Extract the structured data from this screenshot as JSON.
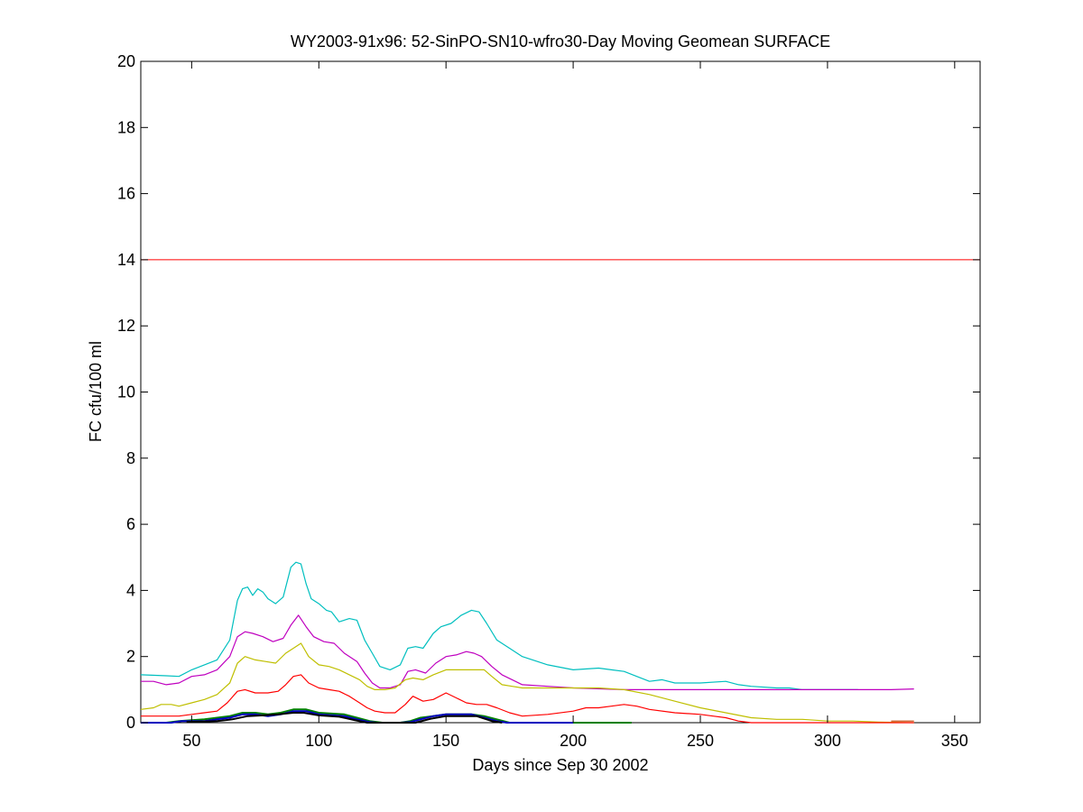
{
  "chart_data": {
    "type": "line",
    "title": "WY2003-91x96: 52-SinPO-SN10-wfro30-Day Moving Geomean SURFACE",
    "xlabel": "Days since Sep 30 2002",
    "ylabel": "FC cfu/100 ml",
    "xlim": [
      30,
      360
    ],
    "ylim": [
      0,
      20
    ],
    "xticks": [
      50,
      100,
      150,
      200,
      250,
      300,
      350
    ],
    "yticks": [
      0,
      2,
      4,
      6,
      8,
      10,
      12,
      14,
      16,
      18,
      20
    ],
    "grid": false,
    "legend": "none",
    "reference_line": {
      "y": 14,
      "color": "#ff0000"
    },
    "series": [
      {
        "color": "#00bfbf",
        "points": [
          [
            30,
            1.45
          ],
          [
            40,
            1.42
          ],
          [
            45,
            1.4
          ],
          [
            50,
            1.6
          ],
          [
            55,
            1.75
          ],
          [
            60,
            1.9
          ],
          [
            65,
            2.5
          ],
          [
            68,
            3.7
          ],
          [
            70,
            4.05
          ],
          [
            72,
            4.1
          ],
          [
            74,
            3.85
          ],
          [
            76,
            4.05
          ],
          [
            78,
            3.95
          ],
          [
            80,
            3.75
          ],
          [
            83,
            3.6
          ],
          [
            86,
            3.8
          ],
          [
            89,
            4.7
          ],
          [
            91,
            4.85
          ],
          [
            93,
            4.8
          ],
          [
            95,
            4.2
          ],
          [
            97,
            3.75
          ],
          [
            100,
            3.6
          ],
          [
            103,
            3.4
          ],
          [
            105,
            3.35
          ],
          [
            108,
            3.05
          ],
          [
            112,
            3.15
          ],
          [
            115,
            3.1
          ],
          [
            118,
            2.5
          ],
          [
            121,
            2.1
          ],
          [
            124,
            1.7
          ],
          [
            128,
            1.6
          ],
          [
            132,
            1.75
          ],
          [
            135,
            2.25
          ],
          [
            138,
            2.3
          ],
          [
            141,
            2.25
          ],
          [
            145,
            2.7
          ],
          [
            148,
            2.9
          ],
          [
            152,
            3.0
          ],
          [
            156,
            3.25
          ],
          [
            160,
            3.4
          ],
          [
            163,
            3.35
          ],
          [
            166,
            3.0
          ],
          [
            170,
            2.5
          ],
          [
            175,
            2.25
          ],
          [
            180,
            2.0
          ],
          [
            190,
            1.75
          ],
          [
            200,
            1.6
          ],
          [
            210,
            1.65
          ],
          [
            215,
            1.6
          ],
          [
            220,
            1.55
          ],
          [
            225,
            1.4
          ],
          [
            230,
            1.25
          ],
          [
            235,
            1.3
          ],
          [
            240,
            1.2
          ],
          [
            250,
            1.2
          ],
          [
            260,
            1.25
          ],
          [
            265,
            1.15
          ],
          [
            270,
            1.1
          ],
          [
            280,
            1.05
          ],
          [
            285,
            1.05
          ],
          [
            290,
            1.0
          ],
          [
            300,
            1.0
          ],
          [
            312,
            1.0
          ]
        ]
      },
      {
        "color": "#bf00bf",
        "points": [
          [
            30,
            1.25
          ],
          [
            35,
            1.25
          ],
          [
            40,
            1.15
          ],
          [
            45,
            1.2
          ],
          [
            50,
            1.4
          ],
          [
            55,
            1.45
          ],
          [
            60,
            1.6
          ],
          [
            65,
            2.0
          ],
          [
            68,
            2.6
          ],
          [
            71,
            2.75
          ],
          [
            74,
            2.7
          ],
          [
            78,
            2.6
          ],
          [
            82,
            2.45
          ],
          [
            86,
            2.55
          ],
          [
            89,
            2.95
          ],
          [
            92,
            3.25
          ],
          [
            95,
            2.9
          ],
          [
            98,
            2.6
          ],
          [
            102,
            2.45
          ],
          [
            106,
            2.4
          ],
          [
            110,
            2.1
          ],
          [
            115,
            1.85
          ],
          [
            118,
            1.5
          ],
          [
            121,
            1.2
          ],
          [
            124,
            1.05
          ],
          [
            128,
            1.05
          ],
          [
            132,
            1.15
          ],
          [
            135,
            1.55
          ],
          [
            138,
            1.6
          ],
          [
            142,
            1.5
          ],
          [
            146,
            1.8
          ],
          [
            150,
            2.0
          ],
          [
            154,
            2.05
          ],
          [
            158,
            2.15
          ],
          [
            161,
            2.1
          ],
          [
            164,
            2.0
          ],
          [
            168,
            1.7
          ],
          [
            172,
            1.45
          ],
          [
            176,
            1.3
          ],
          [
            180,
            1.15
          ],
          [
            190,
            1.1
          ],
          [
            200,
            1.05
          ],
          [
            220,
            1.0
          ],
          [
            260,
            1.0
          ],
          [
            300,
            1.0
          ],
          [
            325,
            1.0
          ],
          [
            334,
            1.02
          ]
        ]
      },
      {
        "color": "#bfbf00",
        "points": [
          [
            30,
            0.4
          ],
          [
            35,
            0.45
          ],
          [
            38,
            0.55
          ],
          [
            42,
            0.55
          ],
          [
            45,
            0.5
          ],
          [
            50,
            0.6
          ],
          [
            55,
            0.7
          ],
          [
            60,
            0.85
          ],
          [
            65,
            1.2
          ],
          [
            68,
            1.8
          ],
          [
            71,
            2.0
          ],
          [
            75,
            1.9
          ],
          [
            79,
            1.85
          ],
          [
            83,
            1.8
          ],
          [
            87,
            2.1
          ],
          [
            90,
            2.25
          ],
          [
            93,
            2.4
          ],
          [
            96,
            2.0
          ],
          [
            100,
            1.75
          ],
          [
            104,
            1.7
          ],
          [
            108,
            1.6
          ],
          [
            112,
            1.45
          ],
          [
            116,
            1.3
          ],
          [
            119,
            1.1
          ],
          [
            122,
            1.0
          ],
          [
            126,
            1.0
          ],
          [
            130,
            1.05
          ],
          [
            134,
            1.3
          ],
          [
            137,
            1.35
          ],
          [
            141,
            1.3
          ],
          [
            145,
            1.45
          ],
          [
            150,
            1.6
          ],
          [
            155,
            1.6
          ],
          [
            160,
            1.6
          ],
          [
            165,
            1.6
          ],
          [
            168,
            1.4
          ],
          [
            172,
            1.15
          ],
          [
            176,
            1.1
          ],
          [
            180,
            1.05
          ],
          [
            190,
            1.05
          ],
          [
            210,
            1.05
          ],
          [
            220,
            1.0
          ],
          [
            230,
            0.85
          ],
          [
            240,
            0.65
          ],
          [
            250,
            0.45
          ],
          [
            260,
            0.3
          ],
          [
            270,
            0.15
          ],
          [
            280,
            0.1
          ],
          [
            290,
            0.1
          ],
          [
            300,
            0.05
          ],
          [
            310,
            0.05
          ],
          [
            320,
            0.02
          ],
          [
            334,
            0.0
          ]
        ]
      },
      {
        "color": "#ff0000",
        "points": [
          [
            30,
            0.2
          ],
          [
            40,
            0.2
          ],
          [
            45,
            0.2
          ],
          [
            50,
            0.25
          ],
          [
            55,
            0.3
          ],
          [
            60,
            0.35
          ],
          [
            64,
            0.6
          ],
          [
            68,
            0.95
          ],
          [
            71,
            1.0
          ],
          [
            75,
            0.9
          ],
          [
            80,
            0.9
          ],
          [
            84,
            0.95
          ],
          [
            87,
            1.15
          ],
          [
            90,
            1.4
          ],
          [
            93,
            1.45
          ],
          [
            96,
            1.2
          ],
          [
            100,
            1.05
          ],
          [
            104,
            1.0
          ],
          [
            108,
            0.95
          ],
          [
            112,
            0.8
          ],
          [
            116,
            0.6
          ],
          [
            119,
            0.45
          ],
          [
            122,
            0.35
          ],
          [
            126,
            0.3
          ],
          [
            130,
            0.3
          ],
          [
            134,
            0.55
          ],
          [
            137,
            0.8
          ],
          [
            141,
            0.65
          ],
          [
            145,
            0.7
          ],
          [
            150,
            0.9
          ],
          [
            154,
            0.75
          ],
          [
            158,
            0.6
          ],
          [
            162,
            0.55
          ],
          [
            166,
            0.55
          ],
          [
            170,
            0.45
          ],
          [
            175,
            0.3
          ],
          [
            180,
            0.2
          ],
          [
            190,
            0.25
          ],
          [
            200,
            0.35
          ],
          [
            205,
            0.45
          ],
          [
            210,
            0.45
          ],
          [
            215,
            0.5
          ],
          [
            220,
            0.55
          ],
          [
            225,
            0.5
          ],
          [
            230,
            0.4
          ],
          [
            240,
            0.3
          ],
          [
            250,
            0.25
          ],
          [
            255,
            0.2
          ],
          [
            260,
            0.15
          ],
          [
            265,
            0.05
          ],
          [
            270,
            0.0
          ],
          [
            280,
            0.0
          ],
          [
            320,
            0.0
          ],
          [
            334,
            0.0
          ]
        ]
      },
      {
        "color": "#008000",
        "points": [
          [
            30,
            0.0
          ],
          [
            40,
            0.0
          ],
          [
            45,
            0.05
          ],
          [
            55,
            0.1
          ],
          [
            60,
            0.15
          ],
          [
            65,
            0.2
          ],
          [
            70,
            0.3
          ],
          [
            75,
            0.3
          ],
          [
            80,
            0.25
          ],
          [
            85,
            0.3
          ],
          [
            90,
            0.4
          ],
          [
            95,
            0.4
          ],
          [
            100,
            0.3
          ],
          [
            110,
            0.25
          ],
          [
            115,
            0.15
          ],
          [
            120,
            0.05
          ],
          [
            125,
            0.0
          ],
          [
            132,
            0.0
          ],
          [
            136,
            0.05
          ],
          [
            140,
            0.15
          ],
          [
            145,
            0.2
          ],
          [
            150,
            0.25
          ],
          [
            155,
            0.25
          ],
          [
            160,
            0.25
          ],
          [
            165,
            0.2
          ],
          [
            170,
            0.1
          ],
          [
            175,
            0.0
          ],
          [
            190,
            0.0
          ],
          [
            223,
            0.0
          ]
        ]
      },
      {
        "color": "#0000bf",
        "points": [
          [
            30,
            0.0
          ],
          [
            42,
            0.0
          ],
          [
            46,
            0.05
          ],
          [
            55,
            0.05
          ],
          [
            60,
            0.1
          ],
          [
            65,
            0.15
          ],
          [
            70,
            0.25
          ],
          [
            75,
            0.25
          ],
          [
            80,
            0.2
          ],
          [
            85,
            0.25
          ],
          [
            90,
            0.35
          ],
          [
            95,
            0.35
          ],
          [
            100,
            0.25
          ],
          [
            110,
            0.2
          ],
          [
            115,
            0.1
          ],
          [
            120,
            0.02
          ],
          [
            123,
            0.0
          ],
          [
            132,
            0.0
          ],
          [
            136,
            0.02
          ],
          [
            140,
            0.1
          ],
          [
            145,
            0.2
          ],
          [
            150,
            0.25
          ],
          [
            155,
            0.25
          ],
          [
            160,
            0.25
          ],
          [
            165,
            0.15
          ],
          [
            170,
            0.05
          ],
          [
            174,
            0.0
          ],
          [
            200,
            0.0
          ]
        ]
      },
      {
        "color": "#000000",
        "points": [
          [
            48,
            0.02
          ],
          [
            60,
            0.05
          ],
          [
            66,
            0.1
          ],
          [
            72,
            0.2
          ],
          [
            78,
            0.22
          ],
          [
            84,
            0.25
          ],
          [
            90,
            0.3
          ],
          [
            94,
            0.3
          ],
          [
            100,
            0.22
          ],
          [
            108,
            0.18
          ],
          [
            114,
            0.08
          ],
          [
            119,
            0.0
          ],
          [
            138,
            0.0
          ],
          [
            144,
            0.12
          ],
          [
            150,
            0.2
          ],
          [
            156,
            0.2
          ],
          [
            162,
            0.2
          ],
          [
            168,
            0.05
          ],
          [
            172,
            0.0
          ]
        ]
      },
      {
        "color": "#bf3f00",
        "points": [
          [
            325,
            0.05
          ],
          [
            334,
            0.05
          ]
        ]
      }
    ]
  }
}
